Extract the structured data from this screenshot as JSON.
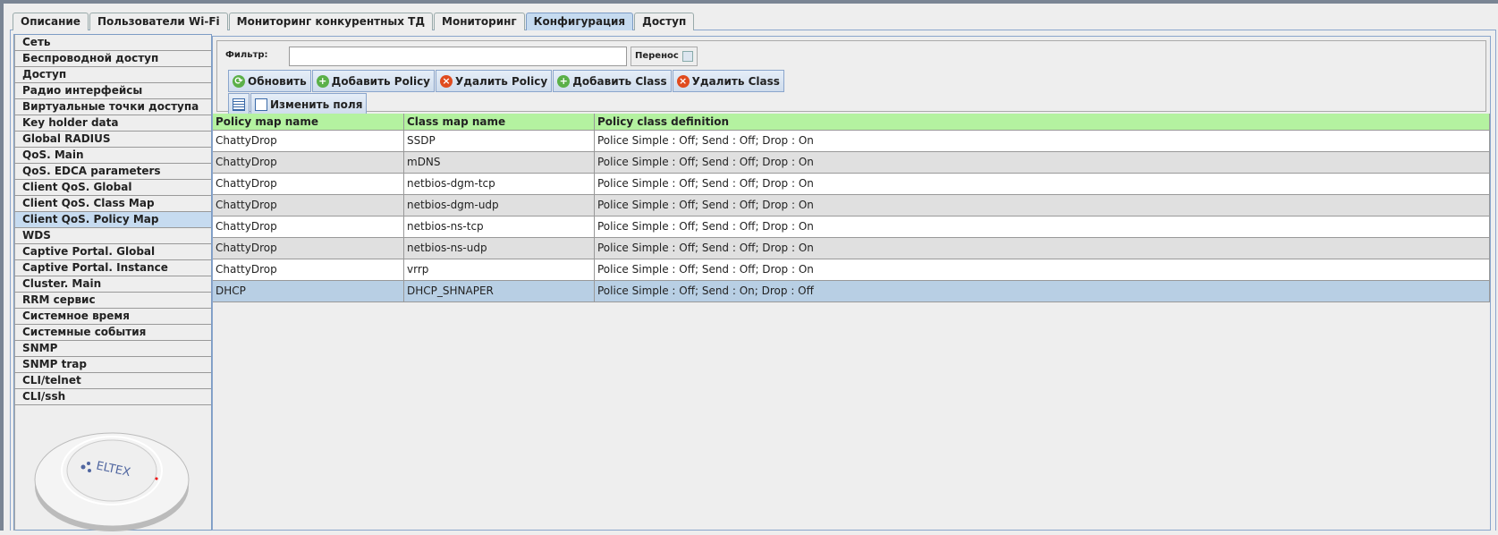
{
  "tabs": [
    "Описание",
    "Пользователи Wi-Fi",
    "Мониторинг конкурентных ТД",
    "Мониторинг",
    "Конфигурация",
    "Доступ"
  ],
  "active_tab": "Конфигурация",
  "sidebar": {
    "items": [
      "Сеть",
      "Беспроводной доступ",
      "Доступ",
      "Радио интерфейсы",
      "Виртуальные точки доступа",
      "Key holder data",
      "Global RADIUS",
      "QoS. Main",
      "QoS. EDCA parameters",
      "Client QoS. Global",
      "Client QoS. Class Map",
      "Client QoS. Policy Map",
      "WDS",
      "Captive Portal. Global",
      "Captive Portal. Instance",
      "Cluster. Main",
      "RRM сервис",
      "Системное время",
      "Системные события",
      "SNMP",
      "SNMP trap",
      "CLI/telnet",
      "CLI/ssh"
    ],
    "active": "Client QoS. Policy Map",
    "device_logo": "ELTEX"
  },
  "toolbar": {
    "filter_label": "Фильтр:",
    "filter_value": "",
    "wrap_label": "Перенос",
    "wrap_checked": false,
    "refresh": "Обновить",
    "add_policy": "Добавить Policy",
    "delete_policy": "Удалить Policy",
    "add_class": "Добавить Class",
    "delete_class": "Удалить Class",
    "edit_fields": "Изменить поля"
  },
  "table": {
    "columns": [
      "Policy map name",
      "Class map name",
      "Policy class definition"
    ],
    "rows": [
      [
        "ChattyDrop",
        "SSDP",
        "Police Simple : Off; Send : Off; Drop : On"
      ],
      [
        "ChattyDrop",
        "mDNS",
        "Police Simple : Off; Send : Off; Drop : On"
      ],
      [
        "ChattyDrop",
        "netbios-dgm-tcp",
        "Police Simple : Off; Send : Off; Drop : On"
      ],
      [
        "ChattyDrop",
        "netbios-dgm-udp",
        "Police Simple : Off; Send : Off; Drop : On"
      ],
      [
        "ChattyDrop",
        "netbios-ns-tcp",
        "Police Simple : Off; Send : Off; Drop : On"
      ],
      [
        "ChattyDrop",
        "netbios-ns-udp",
        "Police Simple : Off; Send : Off; Drop : On"
      ],
      [
        "ChattyDrop",
        "vrrp",
        "Police Simple : Off; Send : Off; Drop : On"
      ],
      [
        "DHCP",
        "DHCP_SHNAPER",
        "Police Simple : Off; Send : On; Drop : Off"
      ]
    ],
    "selected_row": 7
  },
  "colors": {
    "header": "#b4f2a0",
    "selected": "#b8cfe4",
    "active_tab": "#c6dbf0"
  }
}
